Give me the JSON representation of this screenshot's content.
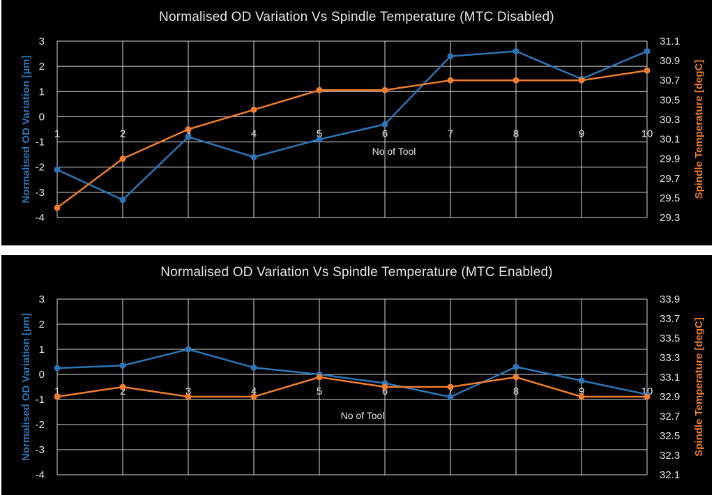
{
  "colors": {
    "background": "#000000",
    "od_series": "#2e75b6",
    "temp_series": "#ed7d31",
    "grid": "#d9d9d9",
    "text": "#e6e6e6"
  },
  "chart_data": [
    {
      "type": "line",
      "title": "Normalised OD Variation Vs Spindle Temperature  (MTC Disabled)",
      "xlabel": "No of Tool",
      "ylabel": "Normalised OD Variation [µm]",
      "y2label": "Spindle Temperature [degC]",
      "x": [
        1,
        2,
        3,
        4,
        5,
        6,
        7,
        8,
        9,
        10
      ],
      "ylim": [
        -4,
        3
      ],
      "yticks": [
        "3",
        "2",
        "1",
        "0",
        "-1",
        "-2",
        "-3",
        "-4"
      ],
      "y2lim": [
        29.3,
        31.1
      ],
      "y2ticks": [
        "31.1",
        "30.9",
        "30.7",
        "30.5",
        "30.3",
        "30.1",
        "29.9",
        "29.7",
        "29.5",
        "29.3"
      ],
      "grid": true,
      "series": [
        {
          "axis": "left",
          "color": "#2e75b6",
          "values": [
            -2.1,
            -3.3,
            -0.8,
            -1.6,
            -0.9,
            -0.3,
            2.4,
            2.6,
            1.5,
            2.6
          ]
        },
        {
          "axis": "right",
          "color": "#ed7d31",
          "values": [
            29.4,
            29.9,
            30.2,
            30.4,
            30.6,
            30.6,
            30.7,
            30.7,
            30.7,
            30.8
          ]
        }
      ]
    },
    {
      "type": "line",
      "title": "Normalised OD Variation Vs Spindle Temperature  (MTC Enabled)",
      "xlabel": "No of Tool",
      "ylabel": "Normalised OD Variation [µm]",
      "y2label": "Spindle Temperature [degC]",
      "x": [
        1,
        2,
        3,
        4,
        5,
        6,
        7,
        8,
        9,
        10
      ],
      "ylim": [
        -4,
        3
      ],
      "yticks": [
        "3",
        "2",
        "1",
        "0",
        "-1",
        "-2",
        "-3",
        "-4"
      ],
      "y2lim": [
        32.1,
        33.9
      ],
      "y2ticks": [
        "33.9",
        "33.7",
        "33.5",
        "33.3",
        "33.1",
        "32.9",
        "32.7",
        "32.5",
        "32.3",
        "32.1"
      ],
      "grid": true,
      "series": [
        {
          "axis": "left",
          "color": "#2e75b6",
          "values": [
            0.25,
            0.35,
            1.0,
            0.27,
            0.0,
            -0.35,
            -0.9,
            0.3,
            -0.25,
            -0.8
          ]
        },
        {
          "axis": "right",
          "color": "#ed7d31",
          "values": [
            32.9,
            33.0,
            32.9,
            32.9,
            33.1,
            33.0,
            33.0,
            33.1,
            32.9,
            32.9
          ]
        }
      ]
    }
  ]
}
